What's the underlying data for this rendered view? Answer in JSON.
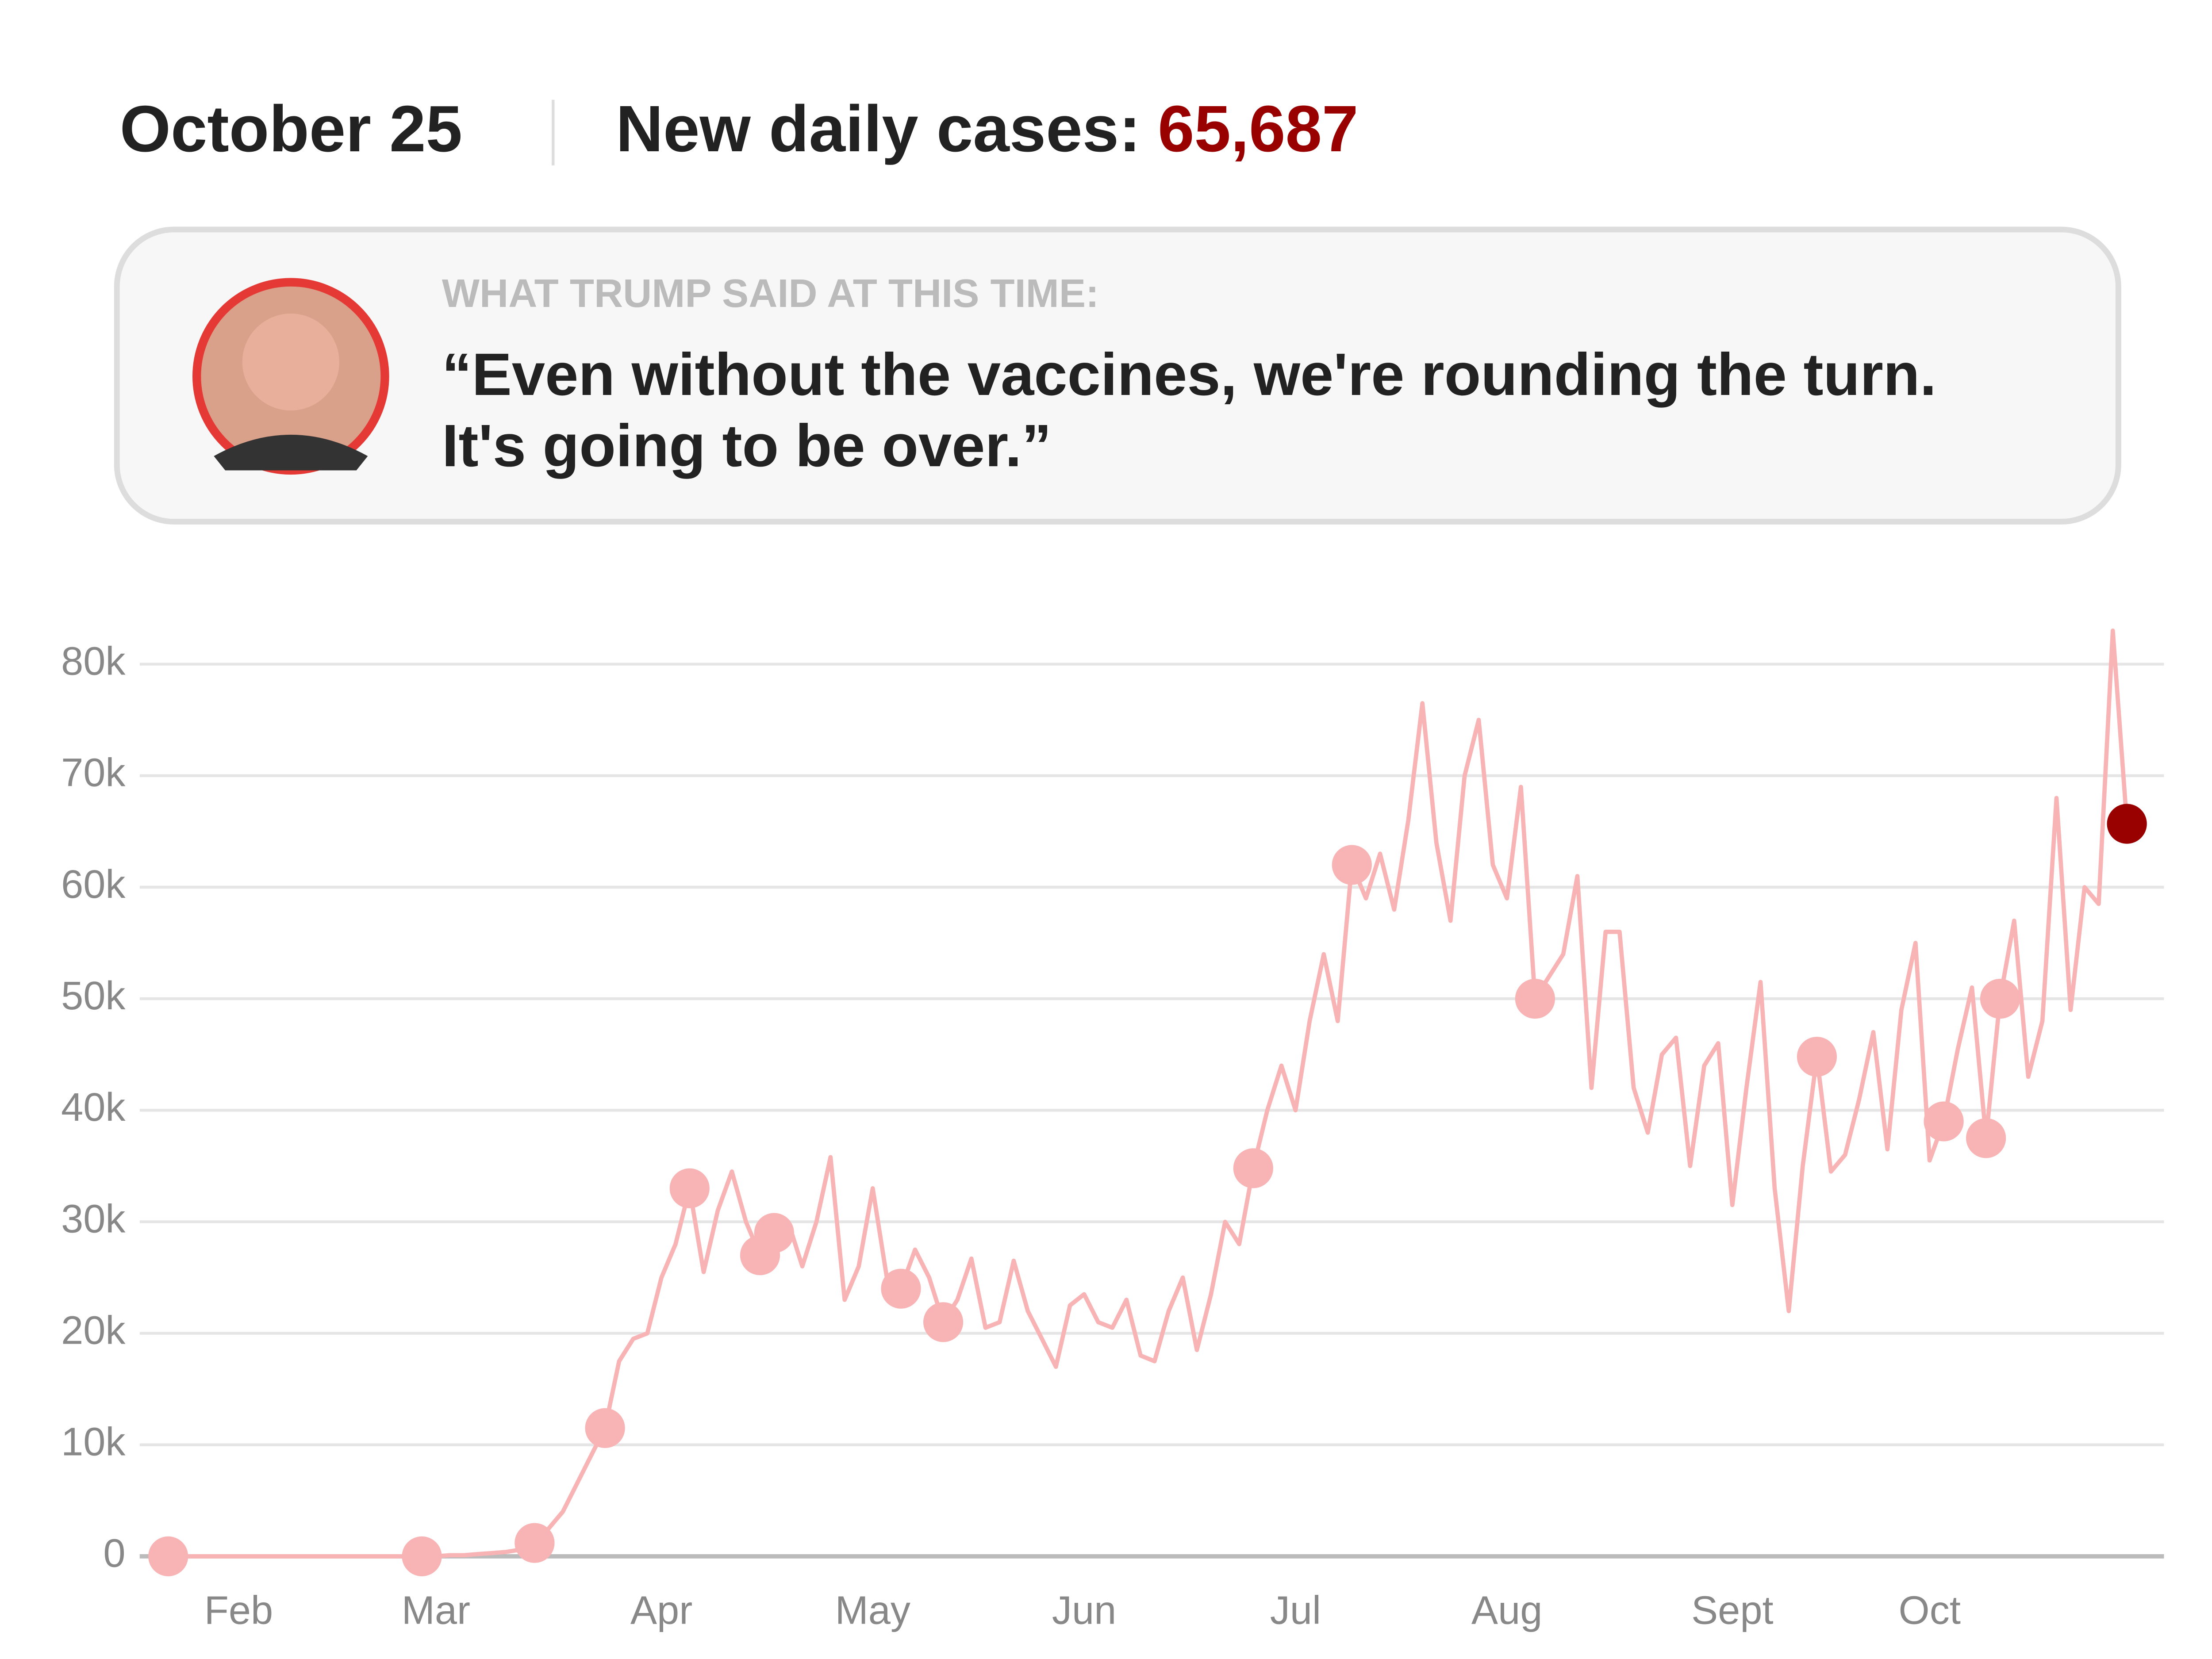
{
  "chart_data": {
    "type": "line",
    "date": "October 25",
    "headline": "New daily cases:",
    "current_label": "65,687",
    "current_color": "#990000",
    "quote_heading": "WHAT TRUMP SAID AT THIS TIME:",
    "quote": [
      "“Even without the vaccines, we're rounding the turn.",
      "It's going to be over.”"
    ],
    "categories": [
      null,
      null,
      null,
      null,
      null,
      "Feb",
      null,
      null,
      null,
      null,
      null,
      null,
      null,
      null,
      null,
      null,
      null,
      null,
      null,
      "Mar",
      null,
      null,
      null,
      null,
      null,
      null,
      null,
      null,
      null,
      null,
      null,
      null,
      null,
      null,
      null,
      "Apr",
      null,
      null,
      null,
      null,
      null,
      null,
      null,
      null,
      null,
      null,
      null,
      null,
      null,
      null,
      "May",
      null,
      null,
      null,
      null,
      null,
      null,
      null,
      null,
      null,
      null,
      null,
      null,
      null,
      null,
      "Jun",
      null,
      null,
      null,
      null,
      null,
      null,
      null,
      null,
      null,
      null,
      null,
      null,
      null,
      null,
      "Jul",
      null,
      null,
      null,
      null,
      null,
      null,
      null,
      null,
      null,
      null,
      null,
      null,
      null,
      null,
      "Aug",
      null,
      null,
      null,
      null,
      null,
      null,
      null,
      null,
      null,
      null,
      null,
      null,
      null,
      null,
      null,
      "Sept",
      null,
      null,
      null,
      null,
      null,
      null,
      null,
      null,
      null,
      null,
      null,
      null,
      null,
      "Oct",
      null,
      null,
      null,
      null,
      null,
      null,
      null,
      null,
      null,
      null,
      null,
      null,
      null,
      null
    ],
    "series": [
      {
        "color": "#f8b4b4",
        "values": [
          0,
          0,
          0,
          0,
          0,
          0,
          0,
          0,
          0,
          0,
          0,
          0,
          0,
          0,
          0,
          0,
          0,
          0,
          0,
          0,
          100,
          100,
          200,
          300,
          400,
          600,
          1200,
          2500,
          4000,
          6500,
          9000,
          11500,
          17500,
          19500,
          20000,
          25000,
          28000,
          33000,
          25500,
          31000,
          34500,
          30000,
          27000,
          29000,
          30000,
          26000,
          30000,
          35800,
          23000,
          26000,
          33000,
          25000,
          24000,
          27500,
          25000,
          21000,
          23000,
          26700,
          20500,
          21000,
          26500,
          22000,
          19500,
          17000,
          22500,
          23500,
          21000,
          20500,
          23000,
          18000,
          17500,
          22000,
          25000,
          18500,
          23500,
          30000,
          28000,
          34800,
          40000,
          44000,
          40000,
          48000,
          54000,
          48000,
          62000,
          59000,
          63000,
          58000,
          66000,
          76500,
          64000,
          57000,
          70000,
          75000,
          62000,
          59000,
          69000,
          50000,
          52000,
          54000,
          61000,
          42000,
          56000,
          56000,
          42000,
          38000,
          45000,
          46500,
          35000,
          44000,
          46000,
          31500,
          42000,
          51500,
          33000,
          22000,
          35000,
          44800,
          34500,
          36000,
          41000,
          47000,
          36500,
          49000,
          55000,
          35500,
          39000,
          45500,
          51000,
          37500,
          50000,
          57000,
          43000,
          48000,
          68000,
          49000,
          60000,
          58500,
          83000,
          65687
        ]
      },
      {
        "color": "#f8b4b4",
        "marker": "dot",
        "values": [
          0,
          null,
          null,
          null,
          null,
          null,
          null,
          null,
          null,
          null,
          null,
          null,
          null,
          null,
          null,
          null,
          null,
          null,
          0,
          null,
          null,
          null,
          null,
          null,
          null,
          null,
          1200,
          null,
          null,
          null,
          null,
          11500,
          null,
          null,
          null,
          null,
          null,
          33000,
          null,
          null,
          null,
          null,
          27000,
          29000,
          null,
          null,
          null,
          null,
          null,
          null,
          null,
          null,
          24000,
          null,
          null,
          21000,
          null,
          null,
          null,
          null,
          null,
          null,
          null,
          null,
          null,
          null,
          null,
          null,
          null,
          null,
          null,
          null,
          null,
          null,
          null,
          null,
          null,
          34800,
          null,
          null,
          null,
          null,
          null,
          null,
          62000,
          null,
          null,
          null,
          null,
          null,
          null,
          null,
          null,
          null,
          null,
          null,
          null,
          50000,
          null,
          null,
          null,
          null,
          null,
          null,
          null,
          null,
          null,
          null,
          null,
          null,
          null,
          null,
          null,
          null,
          null,
          null,
          null,
          44800,
          null,
          null,
          null,
          null,
          null,
          null,
          null,
          null,
          39000,
          null,
          null,
          37500,
          50000,
          null,
          null,
          null,
          null,
          null,
          null,
          null,
          null,
          null
        ]
      }
    ],
    "ylim": [
      0,
      80000
    ],
    "yticks": [
      0,
      {
        "value": 10000,
        "label": "10k"
      },
      {
        "value": 20000,
        "label": "20k"
      },
      {
        "value": 30000,
        "label": "30k"
      },
      {
        "value": 40000,
        "label": "40k"
      },
      {
        "value": 50000,
        "label": "50k"
      },
      {
        "value": 60000,
        "label": "60k"
      },
      {
        "value": 70000,
        "label": "70k"
      },
      {
        "value": 80000,
        "label": "80k"
      }
    ],
    "grid": true
  }
}
